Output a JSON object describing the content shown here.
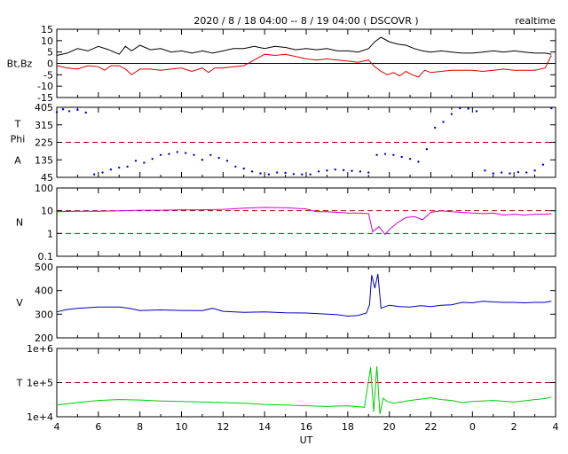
{
  "title": "2020 / 8 / 18   04:00 -- 8 / 19  04:00 ( DSCOVR )",
  "badge": "realtime",
  "xlabel": "UT",
  "colors": {
    "bt": "#000000",
    "bz": "#dd0000",
    "phi": "#0000cc",
    "density": "#cc00cc",
    "speed": "#0000bb",
    "temperature": "#00cc00",
    "reference": "#990000"
  },
  "chart_data": [
    {
      "type": "line",
      "panel": "magnetic field",
      "ylabel": "Bt,Bz",
      "yticks": [
        "15",
        "10",
        "5",
        "0",
        "-5",
        "-10",
        "-15"
      ],
      "ylim": [
        -15,
        15
      ],
      "xticks": [
        "4",
        "6",
        "8",
        "10",
        "12",
        "14",
        "16",
        "18",
        "20",
        "22",
        "0",
        "2",
        "4"
      ],
      "xlim": [
        4,
        28
      ],
      "reference_lines": [
        0
      ],
      "series": [
        {
          "key": "bt",
          "x": [
            4.0,
            4.5,
            5.0,
            5.5,
            6.0,
            6.5,
            7.0,
            7.3,
            7.6,
            8.0,
            8.5,
            9.0,
            9.5,
            10.0,
            10.5,
            11.0,
            11.5,
            12.0,
            12.5,
            13.0,
            13.5,
            14.0,
            14.5,
            15.0,
            15.5,
            16.0,
            16.5,
            17.0,
            17.5,
            18.0,
            18.5,
            19.0,
            19.3,
            19.6,
            20.0,
            20.4,
            20.8,
            21.2,
            21.6,
            22.0,
            22.5,
            23.0,
            23.5,
            24.0,
            24.5,
            25.0,
            25.5,
            26.0,
            26.5,
            27.0,
            27.5,
            27.8
          ],
          "y": [
            3.5,
            4.5,
            6.5,
            5.5,
            7.5,
            6.0,
            4.0,
            7.5,
            5.5,
            8.0,
            6.0,
            6.5,
            5.0,
            5.5,
            4.5,
            5.5,
            4.5,
            5.5,
            6.5,
            6.5,
            7.5,
            6.5,
            7.5,
            7.0,
            6.0,
            6.5,
            6.0,
            6.5,
            5.5,
            5.5,
            5.0,
            6.5,
            9.5,
            11.5,
            9.5,
            8.5,
            8.0,
            6.5,
            5.5,
            5.0,
            5.5,
            5.0,
            4.5,
            4.5,
            5.0,
            5.5,
            5.0,
            5.5,
            5.0,
            4.5,
            4.5,
            4.0
          ]
        },
        {
          "key": "bz",
          "x": [
            4.0,
            4.5,
            5.0,
            5.5,
            6.0,
            6.3,
            6.6,
            7.0,
            7.3,
            7.6,
            8.0,
            8.5,
            9.0,
            9.5,
            10.0,
            10.5,
            11.0,
            11.3,
            11.6,
            12.0,
            12.5,
            13.0,
            13.5,
            14.0,
            14.5,
            15.0,
            15.5,
            16.0,
            16.5,
            17.0,
            17.5,
            18.0,
            18.5,
            19.0,
            19.3,
            19.6,
            19.9,
            20.2,
            20.5,
            20.8,
            21.1,
            21.4,
            21.7,
            22.0,
            22.5,
            23.0,
            23.5,
            24.0,
            24.5,
            25.0,
            25.5,
            26.0,
            26.5,
            27.0,
            27.5,
            27.8
          ],
          "y": [
            -1.0,
            -2.0,
            -2.5,
            -1.0,
            -1.5,
            -3.0,
            -1.0,
            -1.0,
            -2.5,
            -5.0,
            -2.5,
            -2.5,
            -3.0,
            -2.5,
            -2.0,
            -3.5,
            -2.0,
            -4.0,
            -2.0,
            -2.0,
            -1.5,
            -1.0,
            1.5,
            4.0,
            3.5,
            4.0,
            3.0,
            2.0,
            1.5,
            2.0,
            1.5,
            1.0,
            0.5,
            1.5,
            -1.5,
            -3.5,
            -5.0,
            -4.0,
            -5.5,
            -3.5,
            -5.0,
            -6.0,
            -3.0,
            -4.0,
            -3.5,
            -3.0,
            -3.0,
            -3.0,
            -3.5,
            -3.0,
            -2.5,
            -3.0,
            -3.0,
            -3.0,
            -2.0,
            3.5
          ]
        }
      ]
    },
    {
      "type": "scatter",
      "panel": "field direction",
      "ylabel": "T\nPhi\nA",
      "ylabel_lines": [
        "T",
        "Phi",
        "A"
      ],
      "yticks": [
        "405",
        "315",
        "225",
        "135",
        "45"
      ],
      "ylim": [
        45,
        405
      ],
      "reference_lines": [
        225
      ],
      "series": [
        {
          "key": "phi",
          "x": [
            4.0,
            4.3,
            4.6,
            5.0,
            5.4,
            5.8,
            6.2,
            6.6,
            7.0,
            7.4,
            7.8,
            8.2,
            8.6,
            9.0,
            9.4,
            9.8,
            10.2,
            10.6,
            11.0,
            11.4,
            11.8,
            12.2,
            12.6,
            13.0,
            13.4,
            13.8,
            14.2,
            14.6,
            15.0,
            15.4,
            15.8,
            16.2,
            16.6,
            17.0,
            17.4,
            17.8,
            18.2,
            18.6,
            19.0,
            19.4,
            19.8,
            20.2,
            20.6,
            21.0,
            21.4,
            21.8,
            22.2,
            22.6,
            23.0,
            23.4,
            23.8,
            24.2,
            24.6,
            25.0,
            25.4,
            25.8,
            26.2,
            26.6,
            27.0,
            27.4,
            27.8
          ],
          "y": [
            380,
            395,
            385,
            392,
            378,
            60,
            70,
            85,
            95,
            100,
            130,
            120,
            140,
            160,
            165,
            175,
            170,
            160,
            135,
            160,
            145,
            130,
            100,
            90,
            75,
            65,
            60,
            70,
            68,
            62,
            60,
            60,
            75,
            80,
            85,
            82,
            78,
            75,
            70,
            160,
            165,
            160,
            150,
            140,
            125,
            190,
            300,
            330,
            370,
            400,
            398,
            385,
            80,
            65,
            70,
            65,
            72,
            70,
            80,
            110,
            400
          ]
        }
      ]
    },
    {
      "type": "line",
      "panel": "density",
      "ylabel": "N",
      "yticks": [
        "100",
        "10",
        "1",
        "0.1"
      ],
      "ylim": [
        0.1,
        100
      ],
      "yscale": "log",
      "reference_lines": [
        10,
        1
      ],
      "series": [
        {
          "key": "density",
          "x": [
            4.0,
            5.0,
            6.0,
            7.0,
            8.0,
            9.0,
            10.0,
            11.0,
            12.0,
            13.0,
            14.0,
            15.0,
            16.0,
            16.5,
            17.0,
            17.5,
            18.0,
            18.5,
            19.0,
            19.2,
            19.5,
            19.8,
            20.0,
            20.4,
            20.8,
            21.2,
            21.6,
            22.0,
            22.5,
            23.0,
            23.5,
            24.0,
            24.5,
            25.0,
            25.5,
            26.0,
            26.5,
            27.0,
            27.5,
            27.8
          ],
          "y": [
            9.0,
            9.5,
            9.5,
            10.0,
            10.5,
            10.5,
            11.0,
            11.0,
            11.5,
            13.0,
            14.0,
            13.5,
            12.0,
            9.0,
            9.0,
            8.5,
            8.0,
            8.0,
            7.5,
            1.2,
            2.0,
            0.9,
            1.5,
            3.0,
            5.0,
            5.5,
            4.0,
            8.5,
            10.0,
            9.0,
            8.5,
            8.0,
            7.5,
            8.0,
            6.5,
            7.0,
            6.5,
            7.0,
            7.0,
            7.5
          ]
        }
      ]
    },
    {
      "type": "line",
      "panel": "speed",
      "ylabel": "V",
      "yticks": [
        "500",
        "400",
        "300",
        "200"
      ],
      "ylim": [
        200,
        500
      ],
      "series": [
        {
          "key": "speed",
          "x": [
            4.0,
            4.5,
            5.0,
            6.0,
            7.0,
            7.5,
            8.0,
            9.0,
            10.0,
            11.0,
            11.5,
            12.0,
            13.0,
            14.0,
            15.0,
            16.0,
            17.0,
            17.5,
            18.0,
            18.5,
            18.9,
            19.05,
            19.15,
            19.3,
            19.45,
            19.6,
            19.8,
            20.0,
            20.5,
            21.0,
            21.5,
            22.0,
            22.5,
            23.0,
            23.5,
            24.0,
            24.5,
            25.0,
            25.5,
            26.0,
            26.5,
            27.0,
            27.5,
            27.8
          ],
          "y": [
            310,
            320,
            325,
            330,
            330,
            325,
            315,
            318,
            316,
            315,
            325,
            312,
            308,
            310,
            306,
            305,
            300,
            298,
            292,
            295,
            305,
            340,
            465,
            410,
            470,
            325,
            332,
            338,
            332,
            330,
            336,
            332,
            338,
            340,
            350,
            348,
            355,
            352,
            350,
            350,
            348,
            350,
            350,
            355
          ]
        }
      ]
    },
    {
      "type": "line",
      "panel": "temperature",
      "ylabel": "T",
      "yticks": [
        "1e+6",
        "1e+5",
        "1e+4"
      ],
      "ylim": [
        10000,
        1000000
      ],
      "yscale": "log",
      "reference_lines": [
        100000
      ],
      "series": [
        {
          "key": "temperature",
          "x": [
            4.0,
            5.0,
            6.0,
            7.0,
            8.0,
            9.0,
            10.0,
            11.0,
            12.0,
            13.0,
            14.0,
            15.0,
            16.0,
            17.0,
            18.0,
            18.8,
            19.1,
            19.25,
            19.4,
            19.55,
            19.7,
            19.9,
            20.2,
            21.0,
            22.0,
            22.5,
            23.0,
            23.5,
            24.0,
            25.0,
            26.0,
            27.0,
            27.5,
            27.8
          ],
          "y": [
            22000,
            26000,
            30000,
            32000,
            31000,
            29000,
            28000,
            27000,
            26000,
            25000,
            23000,
            22000,
            21000,
            20000,
            21000,
            19000,
            280000,
            14000,
            300000,
            12000,
            35000,
            28000,
            25000,
            30000,
            36000,
            32000,
            30000,
            26000,
            28000,
            30000,
            27000,
            32000,
            34000,
            38000
          ]
        }
      ]
    }
  ]
}
